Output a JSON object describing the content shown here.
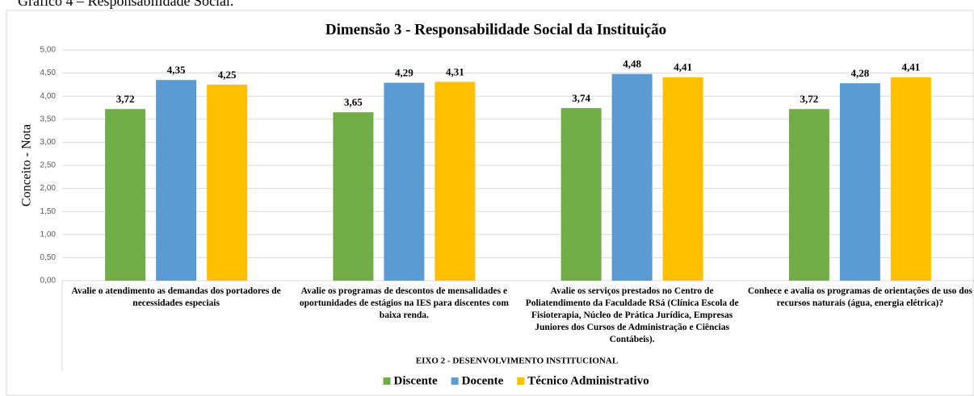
{
  "caption": "Gráfico 4 – Responsabilidade Social.",
  "chart_data": {
    "type": "bar",
    "title": "Dimensão 3 - Responsabilidade Social da Instituição",
    "y_label": "Conceito - Nota",
    "x_label": "EIXO 2 - DESENVOLVIMENTO INSTITUCIONAL",
    "categories": [
      "Avalie o atendimento as demandas dos portadores de necessidades especiais",
      "Avalie os programas de descontos de mensalidades e oportunidades de estágios na IES para discentes com baixa renda.",
      "Avalie os serviços prestados no Centro de Poliatendimento da Faculdade RSá (Clínica Escola de Fisioterapia, Núcleo de Prática Jurídica, Empresas Juniores dos Cursos de Administração e Ciências Contábeis).",
      "Conhece e avalia os programas de orientações de uso dos recursos naturais (água, energia elétrica)?"
    ],
    "series": [
      {
        "name": "Discente",
        "color": "#70ad47",
        "values": [
          3.72,
          3.65,
          3.74,
          3.72
        ],
        "value_labels": [
          "3,72",
          "3,65",
          "3,74",
          "3,72"
        ]
      },
      {
        "name": "Docente",
        "color": "#5b9bd5",
        "values": [
          4.35,
          4.29,
          4.48,
          4.28
        ],
        "value_labels": [
          "4,35",
          "4,29",
          "4,48",
          "4,28"
        ]
      },
      {
        "name": "Técnico Administrativo",
        "color": "#ffc000",
        "values": [
          4.25,
          4.31,
          4.41,
          4.41
        ],
        "value_labels": [
          "4,25",
          "4,31",
          "4,41",
          "4,41"
        ]
      }
    ],
    "ylim": [
      0,
      5
    ],
    "yticks": [
      {
        "value": 0,
        "label": "0,00"
      },
      {
        "value": 0.5,
        "label": "0,50"
      },
      {
        "value": 1,
        "label": "1,00"
      },
      {
        "value": 1.5,
        "label": "1,50"
      },
      {
        "value": 2,
        "label": "2,00"
      },
      {
        "value": 2.5,
        "label": "2,50"
      },
      {
        "value": 3,
        "label": "3,00"
      },
      {
        "value": 3.5,
        "label": "3,50"
      },
      {
        "value": 4,
        "label": "4,00"
      },
      {
        "value": 4.5,
        "label": "4,50"
      },
      {
        "value": 5,
        "label": "5,00"
      }
    ],
    "grid": true,
    "legend": "bottom"
  }
}
